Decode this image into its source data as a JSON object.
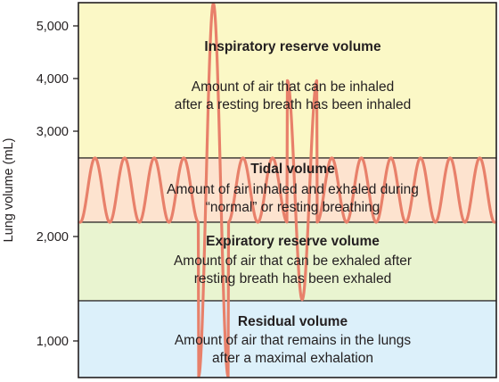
{
  "chart_data": {
    "type": "line",
    "title": "",
    "xlabel": "",
    "ylabel": "Lung volume (mL)",
    "y_ticks": [
      "5,000",
      "4,000",
      "3,000",
      "2,000",
      "1,000"
    ],
    "y_tick_values": [
      5000,
      4000,
      3000,
      2000,
      1000
    ],
    "grid": false,
    "bands": [
      {
        "name": "Inspiratory reserve volume",
        "description": [
          "Amount of air that can be inhaled",
          "after a resting breath has been inhaled"
        ],
        "color": "#fbf8c6"
      },
      {
        "name": "Tidal volume",
        "description": [
          "Amount of air inhaled and exhaled during",
          "“normal” or resting breathing"
        ],
        "color": "#fde3cf"
      },
      {
        "name": "Expiratory reserve volume",
        "description": [
          "Amount of air that can be exhaled after",
          "resting breath has been exhaled"
        ],
        "color": "#e9f4d0"
      },
      {
        "name": "Residual volume",
        "description": [
          "Amount of air that remains in the lungs",
          "after a maximal exhalation"
        ],
        "color": "#dcf0fa"
      }
    ],
    "band_edges_ml": [
      5450,
      2680,
      2080,
      1430,
      650
    ],
    "trace": {
      "color": "#e8806a",
      "resting_peak_ml": 2680,
      "resting_trough_ml": 2080,
      "max_inhalation_ml": 5430,
      "max_exhalation_ml": 1440,
      "resting_cycles": 14
    }
  }
}
